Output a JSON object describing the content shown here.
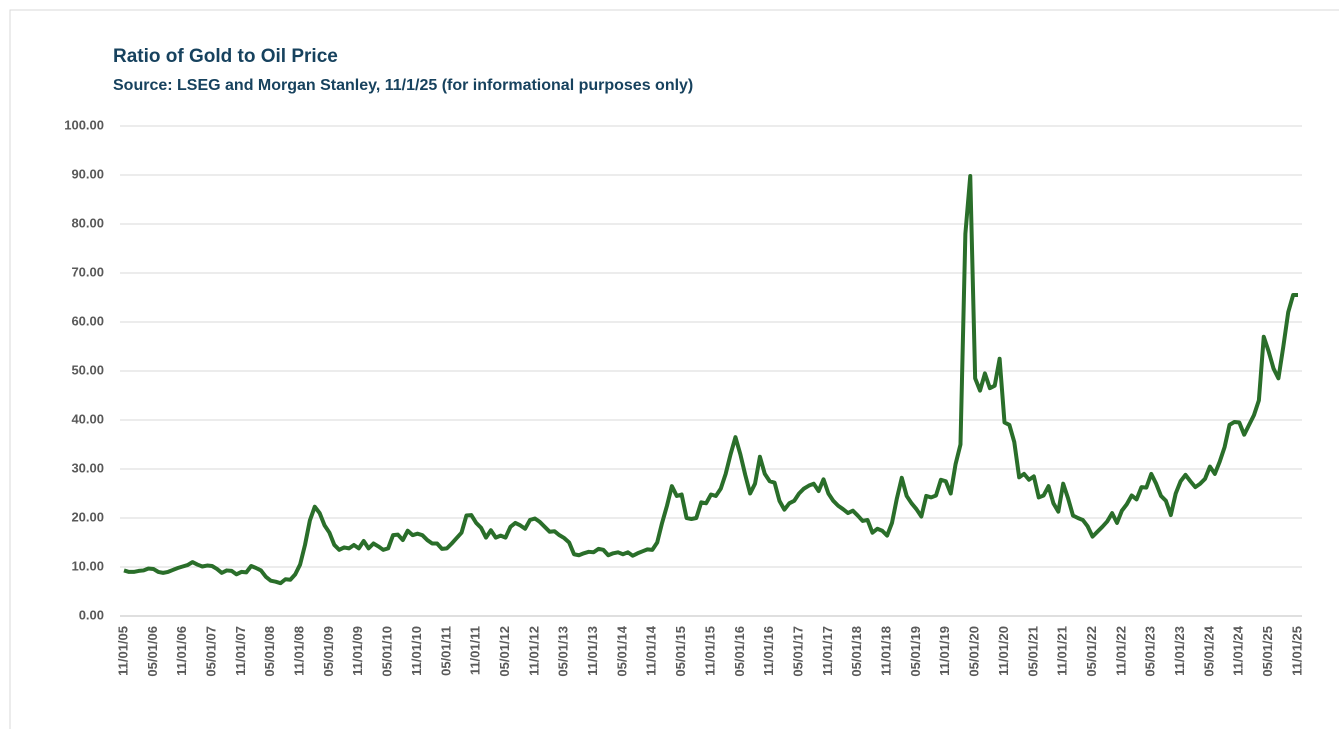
{
  "chart_data": {
    "type": "line",
    "title": "Ratio of Gold to Oil Price",
    "subtitle": "Source: LSEG and Morgan Stanley, 11/1/25 (for informational purposes only)",
    "color": "#2a6e2a",
    "grid": true,
    "ylim": [
      0,
      100
    ],
    "yticks": [
      {
        "value": 0,
        "label": "0.00"
      },
      {
        "value": 10,
        "label": "10.00"
      },
      {
        "value": 20,
        "label": "20.00"
      },
      {
        "value": 30,
        "label": "30.00"
      },
      {
        "value": 40,
        "label": "40.00"
      },
      {
        "value": 50,
        "label": "50.00"
      },
      {
        "value": 60,
        "label": "60.00"
      },
      {
        "value": 70,
        "label": "70.00"
      },
      {
        "value": 80,
        "label": "80.00"
      },
      {
        "value": 90,
        "label": "90.00"
      },
      {
        "value": 100,
        "label": "100.00"
      }
    ],
    "categories": [
      "11/01/05",
      null,
      null,
      null,
      null,
      null,
      "05/01/06",
      null,
      null,
      null,
      null,
      null,
      "11/01/06",
      null,
      null,
      null,
      null,
      null,
      "05/01/07",
      null,
      null,
      null,
      null,
      null,
      "11/01/07",
      null,
      null,
      null,
      null,
      null,
      "05/01/08",
      null,
      null,
      null,
      null,
      null,
      "11/01/08",
      null,
      null,
      null,
      null,
      null,
      "05/01/09",
      null,
      null,
      null,
      null,
      null,
      "11/01/09",
      null,
      null,
      null,
      null,
      null,
      "05/01/10",
      null,
      null,
      null,
      null,
      null,
      "11/01/10",
      null,
      null,
      null,
      null,
      null,
      "05/01/11",
      null,
      null,
      null,
      null,
      null,
      "11/01/11",
      null,
      null,
      null,
      null,
      null,
      "05/01/12",
      null,
      null,
      null,
      null,
      null,
      "11/01/12",
      null,
      null,
      null,
      null,
      null,
      "05/01/13",
      null,
      null,
      null,
      null,
      null,
      "11/01/13",
      null,
      null,
      null,
      null,
      null,
      "05/01/14",
      null,
      null,
      null,
      null,
      null,
      "11/01/14",
      null,
      null,
      null,
      null,
      null,
      "05/01/15",
      null,
      null,
      null,
      null,
      null,
      "11/01/15",
      null,
      null,
      null,
      null,
      null,
      "05/01/16",
      null,
      null,
      null,
      null,
      null,
      "11/01/16",
      null,
      null,
      null,
      null,
      null,
      "05/01/17",
      null,
      null,
      null,
      null,
      null,
      "11/01/17",
      null,
      null,
      null,
      null,
      null,
      "05/01/18",
      null,
      null,
      null,
      null,
      null,
      "11/01/18",
      null,
      null,
      null,
      null,
      null,
      "05/01/19",
      null,
      null,
      null,
      null,
      null,
      "11/01/19",
      null,
      null,
      null,
      null,
      null,
      "05/01/20",
      null,
      null,
      null,
      null,
      null,
      "11/01/20",
      null,
      null,
      null,
      null,
      null,
      "05/01/21",
      null,
      null,
      null,
      null,
      null,
      "11/01/21",
      null,
      null,
      null,
      null,
      null,
      "05/01/22",
      null,
      null,
      null,
      null,
      null,
      "11/01/22",
      null,
      null,
      null,
      null,
      null,
      "05/01/23",
      null,
      null,
      null,
      null,
      null,
      "11/01/23",
      null,
      null,
      null,
      null,
      null,
      "05/01/24",
      null,
      null,
      null,
      null,
      null,
      "11/01/24",
      null,
      null,
      null,
      null,
      null,
      "05/01/25",
      null,
      null,
      null,
      null,
      null,
      "11/01/25"
    ],
    "values": [
      9.3,
      9.0,
      9.0,
      9.2,
      9.3,
      9.7,
      9.6,
      9.0,
      8.8,
      9.0,
      9.4,
      9.8,
      10.1,
      10.4,
      11.0,
      10.5,
      10.1,
      10.3,
      10.2,
      9.6,
      8.8,
      9.3,
      9.2,
      8.5,
      9.0,
      8.9,
      10.2,
      9.8,
      9.3,
      8.0,
      7.2,
      7.0,
      6.7,
      7.5,
      7.4,
      8.5,
      10.5,
      14.5,
      19.5,
      22.3,
      21.0,
      18.5,
      17.0,
      14.5,
      13.5,
      14.0,
      13.8,
      14.5,
      13.8,
      15.3,
      13.8,
      14.8,
      14.2,
      13.5,
      13.8,
      16.5,
      16.6,
      15.5,
      17.4,
      16.5,
      16.8,
      16.5,
      15.5,
      14.8,
      14.8,
      13.7,
      13.8,
      14.8,
      15.9,
      17.0,
      20.5,
      20.6,
      19.0,
      18.0,
      16.0,
      17.5,
      16.0,
      16.4,
      16.0,
      18.2,
      19.0,
      18.5,
      17.8,
      19.6,
      19.9,
      19.2,
      18.2,
      17.2,
      17.3,
      16.5,
      15.9,
      15.0,
      12.6,
      12.4,
      12.8,
      13.1,
      13.0,
      13.7,
      13.5,
      12.4,
      12.8,
      13.0,
      12.6,
      13.0,
      12.3,
      12.8,
      13.2,
      13.6,
      13.5,
      15.0,
      19.0,
      22.5,
      26.5,
      24.5,
      24.8,
      20.0,
      19.8,
      20.0,
      23.2,
      23.0,
      24.8,
      24.5,
      26.0,
      29.0,
      33.0,
      36.5,
      33.0,
      28.8,
      25.0,
      27.0,
      32.5,
      29.0,
      27.5,
      27.2,
      23.5,
      21.7,
      23.0,
      23.5,
      25.0,
      26.0,
      26.6,
      27.0,
      25.5,
      27.9,
      25.0,
      23.5,
      22.5,
      21.8,
      21.0,
      21.5,
      20.5,
      19.4,
      19.6,
      17.0,
      17.8,
      17.4,
      16.4,
      19.0,
      24.0,
      28.2,
      24.5,
      23.0,
      21.8,
      20.3,
      24.5,
      24.2,
      24.6,
      27.8,
      27.5,
      25.0,
      31.0,
      35.0,
      78.0,
      89.8,
      48.5,
      46.0,
      49.5,
      46.5,
      47.0,
      52.5,
      39.5,
      39.0,
      35.5,
      28.3,
      29.0,
      27.8,
      28.5,
      24.2,
      24.6,
      26.5,
      23.0,
      21.3,
      27.0,
      24.0,
      20.5,
      20.0,
      19.6,
      18.3,
      16.2,
      17.2,
      18.2,
      19.3,
      21.0,
      19.0,
      21.5,
      22.8,
      24.6,
      23.8,
      26.3,
      26.2,
      29.0,
      27.0,
      24.5,
      23.5,
      20.6,
      25.0,
      27.5,
      28.8,
      27.5,
      26.3,
      27.0,
      28.0,
      30.5,
      29.0,
      31.5,
      34.5,
      39.0,
      39.6,
      39.5,
      37.0,
      39.0,
      41.0,
      44.0,
      57.0,
      54.0,
      50.5,
      48.5,
      55.0,
      62.0,
      65.5,
      65.5
    ]
  }
}
